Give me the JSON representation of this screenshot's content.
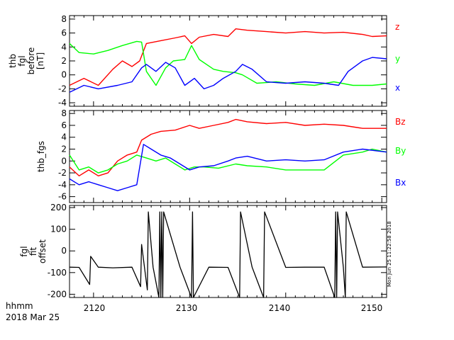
{
  "colors": {
    "red": "#ff0000",
    "green": "#00ff00",
    "blue": "#0000ff",
    "black": "#000000"
  },
  "footer": {
    "axis_name": "hhmm",
    "date": "2018 Mar 25"
  },
  "timestamp": "Mon Jun 25 11:22:58 2018",
  "chart_data": [
    {
      "type": "line",
      "title": "",
      "ylabel_lines": [
        "thb",
        "fgl",
        "before",
        "[nT]"
      ],
      "xlabel": "hhmm",
      "xlim": [
        2117.5,
        2150.5
      ],
      "ylim": [
        -4.5,
        8.5
      ],
      "yticks": [
        -4,
        -2,
        0,
        2,
        4,
        6,
        8
      ],
      "series": [
        {
          "name": "z",
          "color": "#ff0000",
          "x": [
            2117.5,
            2119,
            2120.5,
            2122,
            2123,
            2124,
            2124.8,
            2125.5,
            2127,
            2128.5,
            2129.5,
            2130.2,
            2131,
            2132.5,
            2134,
            2134.8,
            2136,
            2138,
            2140,
            2142,
            2144,
            2146,
            2148,
            2149,
            2150.5
          ],
          "y": [
            -1.5,
            -0.5,
            -1.5,
            0.8,
            2.0,
            1.2,
            2.0,
            4.5,
            4.9,
            5.3,
            5.6,
            4.5,
            5.4,
            5.8,
            5.5,
            6.6,
            6.4,
            6.2,
            6.0,
            6.2,
            6.0,
            6.1,
            5.8,
            5.5,
            5.6
          ]
        },
        {
          "name": "y",
          "color": "#00ff00",
          "x": [
            2117.5,
            2118.5,
            2120,
            2121.5,
            2123,
            2124.5,
            2125,
            2125.5,
            2126.5,
            2127.5,
            2128.3,
            2129.5,
            2130.2,
            2131,
            2132.5,
            2133.5,
            2134.8,
            2135.5,
            2137,
            2139,
            2141,
            2143,
            2145,
            2147,
            2149,
            2150.5
          ],
          "y": [
            4.5,
            3.2,
            3.0,
            3.5,
            4.2,
            4.8,
            4.7,
            0.5,
            -1.5,
            1.0,
            2.0,
            2.2,
            4.2,
            2.2,
            0.8,
            0.5,
            0.3,
            0.0,
            -1.2,
            -1.0,
            -1.3,
            -1.5,
            -1.0,
            -1.5,
            -1.5,
            -1.3
          ]
        },
        {
          "name": "x",
          "color": "#0000ff",
          "x": [
            2117.5,
            2119,
            2120.5,
            2122.5,
            2124,
            2125,
            2125.5,
            2126.5,
            2127.5,
            2128.5,
            2129.5,
            2130.5,
            2131.5,
            2132.5,
            2133.5,
            2134.8,
            2135.5,
            2136.5,
            2138,
            2140,
            2142,
            2144,
            2145.5,
            2146.5,
            2148,
            2149,
            2150.5
          ],
          "y": [
            -2.5,
            -1.5,
            -2.0,
            -1.5,
            -1.0,
            1.0,
            1.5,
            0.5,
            1.8,
            1.0,
            -1.5,
            -0.5,
            -2.0,
            -1.5,
            -0.5,
            0.5,
            1.5,
            0.8,
            -1.0,
            -1.2,
            -1.0,
            -1.2,
            -1.5,
            0.5,
            2.0,
            2.5,
            2.3
          ]
        }
      ]
    },
    {
      "type": "line",
      "title": "",
      "ylabel_lines": [
        "thb_fgs"
      ],
      "xlabel": "hhmm",
      "xlim": [
        2117.5,
        2150.5
      ],
      "ylim": [
        -7,
        8.5
      ],
      "yticks": [
        -6,
        -4,
        -2,
        0,
        2,
        4,
        6,
        8
      ],
      "series": [
        {
          "name": "Bz",
          "color": "#ff0000",
          "x": [
            2117.5,
            2118.5,
            2119.5,
            2120.5,
            2121.5,
            2122.5,
            2123.5,
            2124.5,
            2125,
            2126,
            2127,
            2128.5,
            2130,
            2131,
            2132.5,
            2134,
            2134.8,
            2136,
            2138,
            2140,
            2142,
            2144,
            2146,
            2148,
            2150.5
          ],
          "y": [
            -1.0,
            -2.5,
            -1.5,
            -2.5,
            -2.0,
            0.0,
            1.0,
            1.5,
            3.5,
            4.5,
            5.0,
            5.2,
            6.0,
            5.5,
            6.0,
            6.5,
            7.0,
            6.6,
            6.3,
            6.5,
            6.0,
            6.2,
            6.0,
            5.5,
            5.5
          ]
        },
        {
          "name": "By",
          "color": "#00ff00",
          "x": [
            2117.5,
            2118.5,
            2119.5,
            2120.5,
            2121.5,
            2122.5,
            2123.5,
            2124.5,
            2125.5,
            2126.5,
            2127.5,
            2128.5,
            2129.5,
            2130.5,
            2131.5,
            2133,
            2134.8,
            2136,
            2138,
            2140,
            2142,
            2144,
            2146,
            2148,
            2149,
            2150.5
          ],
          "y": [
            1.0,
            -1.5,
            -1.0,
            -2.0,
            -1.5,
            -0.5,
            0.0,
            1.0,
            0.5,
            0.0,
            0.5,
            -0.5,
            -1.5,
            -1.0,
            -1.0,
            -1.2,
            -0.5,
            -0.8,
            -1.0,
            -1.5,
            -1.5,
            -1.5,
            1.0,
            1.5,
            2.0,
            1.5
          ]
        },
        {
          "name": "Bx",
          "color": "#0000ff",
          "x": [
            2117.5,
            2118.5,
            2119.5,
            2120.5,
            2121.5,
            2122.5,
            2123.5,
            2124.5,
            2125.2,
            2126,
            2127,
            2128,
            2129,
            2130,
            2131,
            2132.5,
            2134,
            2134.8,
            2136,
            2138,
            2140,
            2142,
            2144,
            2146,
            2148,
            2150.5
          ],
          "y": [
            -3.0,
            -4.0,
            -3.5,
            -4.0,
            -4.5,
            -5.0,
            -4.5,
            -4.0,
            2.8,
            2.0,
            1.0,
            0.5,
            -0.5,
            -1.5,
            -1.0,
            -0.8,
            0.0,
            0.5,
            0.8,
            0.0,
            0.2,
            0.0,
            0.2,
            1.5,
            2.0,
            1.5
          ]
        }
      ]
    },
    {
      "type": "line",
      "title": "",
      "ylabel_lines": [
        "fgl",
        "fit",
        "offset"
      ],
      "xlabel": "hhmm",
      "xlim": [
        2117.5,
        2150.5
      ],
      "xticks": [
        2120,
        2130,
        2140,
        2150
      ],
      "ylim": [
        -215,
        210
      ],
      "yticks": [
        -200,
        -100,
        0,
        100,
        200
      ],
      "series": [
        {
          "name": "offset",
          "color": "#000000",
          "baseline": -75,
          "x": [
            2117.5,
            2118.5,
            2119.6,
            2119.7,
            2120.5,
            2122,
            2124,
            2124.9,
            2125.0,
            2125.6,
            2125.7,
            2126.2,
            2126.8,
            2126.9,
            2127.0,
            2127.1,
            2127.2,
            2127.3,
            2129,
            2130.2,
            2130.3,
            2130.4,
            2132,
            2134,
            2135.2,
            2135.3,
            2136.5,
            2137.7,
            2137.8,
            2140,
            2142,
            2144,
            2145.1,
            2145.2,
            2145.3,
            2145.4,
            2146,
            2146.2,
            2146.3,
            2148,
            2150.5
          ],
          "y": [
            -75,
            -76,
            -155,
            -25,
            -75,
            -78,
            -75,
            -165,
            30,
            -180,
            180,
            -75,
            -215,
            180,
            -215,
            180,
            -215,
            180,
            -75,
            -215,
            180,
            -215,
            -75,
            -76,
            -215,
            180,
            -75,
            -215,
            180,
            -76,
            -75,
            -75,
            -215,
            180,
            -215,
            180,
            -75,
            -215,
            180,
            -75,
            -74
          ]
        }
      ]
    }
  ]
}
